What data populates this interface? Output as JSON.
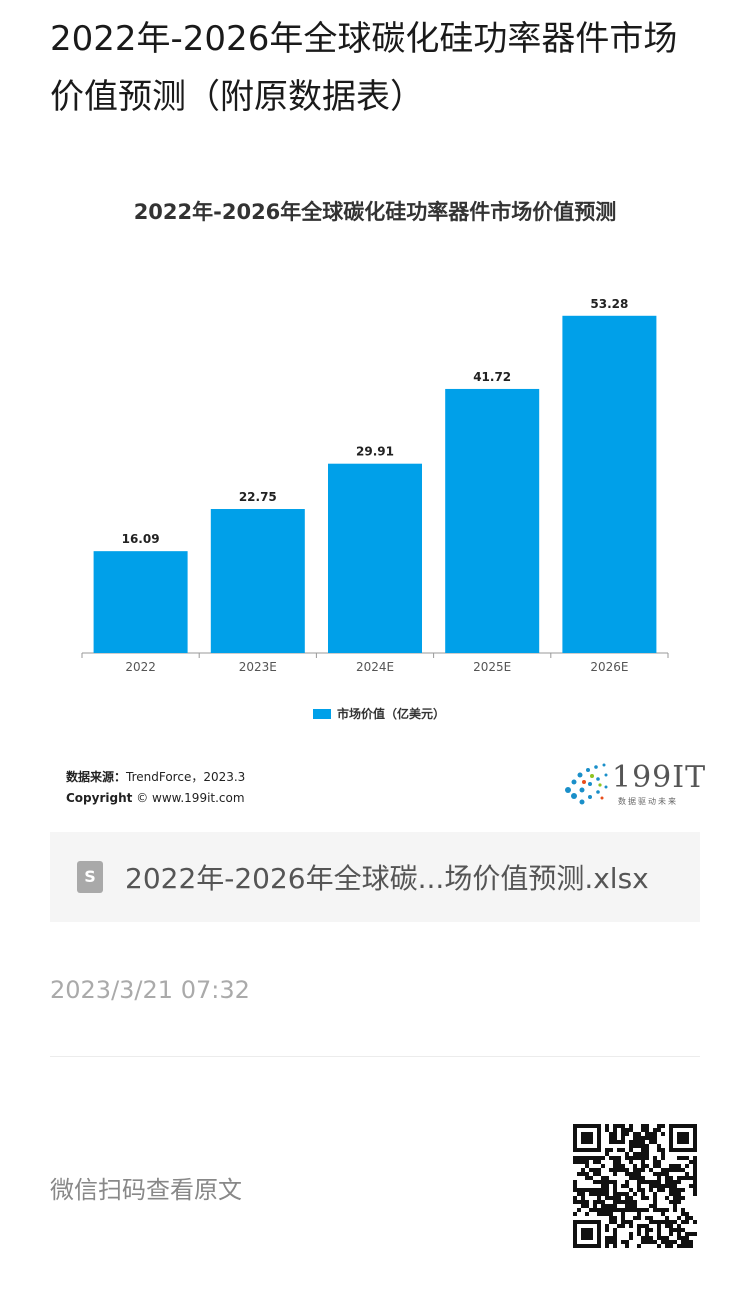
{
  "article": {
    "title": "2022年-2026年全球碳化硅功率器件市场价值预测（附原数据表）",
    "timestamp": "2023/3/21 07:32",
    "scan_text": "微信扫码查看原文"
  },
  "attachment": {
    "file_name": "2022年-2026年全球碳...场价值预测.xlsx",
    "icon": "spreadsheet-file-icon",
    "icon_glyph": "S"
  },
  "chart_data": {
    "type": "bar",
    "title": "2022年-2026年全球碳化硅功率器件市场价值预测",
    "categories": [
      "2022",
      "2023E",
      "2024E",
      "2025E",
      "2026E"
    ],
    "series": [
      {
        "name": "市场价值（亿美元）",
        "values": [
          16.09,
          22.75,
          29.91,
          41.72,
          53.28
        ],
        "color": "#00a0e9"
      }
    ],
    "ylim": [
      0,
      60
    ],
    "grid": false,
    "legend": "bottom"
  },
  "chart_footer": {
    "source_label": "数据来源：",
    "source_value": "TrendForce，2023.3",
    "copyright_label": "Copyright",
    "copyright_value": "© www.199it.com"
  },
  "logo": {
    "text": "199IT",
    "tagline": "数据驱动未来"
  },
  "qr_code": {
    "icon": "qr-code-icon"
  }
}
